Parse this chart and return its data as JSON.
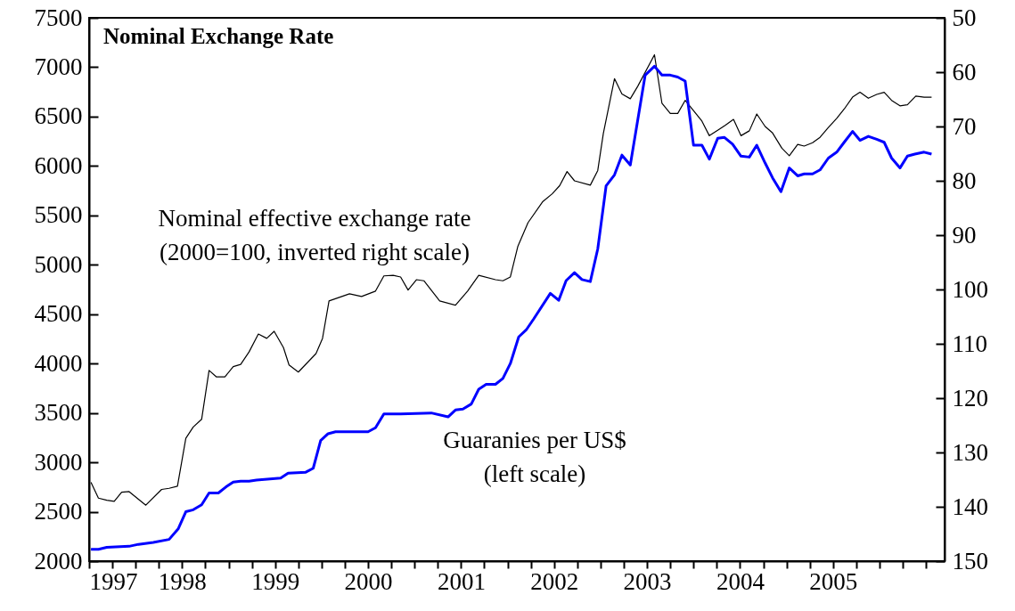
{
  "chart_data": {
    "type": "line",
    "title": "Nominal Exchange Rate",
    "xlim": [
      1997,
      2006.2
    ],
    "xticks": [
      1997,
      {
        "value": 1997.25,
        "label": null
      },
      {
        "value": 1997.5,
        "label": null
      },
      {
        "value": 1997.75,
        "label": null
      },
      1998,
      {
        "value": 1998.25,
        "label": null
      },
      {
        "value": 1998.5,
        "label": null
      },
      {
        "value": 1998.75,
        "label": null
      },
      1999,
      {
        "value": 1999.25,
        "label": null
      },
      {
        "value": 1999.5,
        "label": null
      },
      {
        "value": 1999.75,
        "label": null
      },
      2000,
      {
        "value": 2000.25,
        "label": null
      },
      {
        "value": 2000.5,
        "label": null
      },
      {
        "value": 2000.75,
        "label": null
      },
      2001,
      {
        "value": 2001.25,
        "label": null
      },
      {
        "value": 2001.5,
        "label": null
      },
      {
        "value": 2001.75,
        "label": null
      },
      2002,
      {
        "value": 2002.25,
        "label": null
      },
      {
        "value": 2002.5,
        "label": null
      },
      {
        "value": 2002.75,
        "label": null
      },
      2003,
      {
        "value": 2003.25,
        "label": null
      },
      {
        "value": 2003.5,
        "label": null
      },
      {
        "value": 2003.75,
        "label": null
      },
      2004,
      {
        "value": 2004.25,
        "label": null
      },
      {
        "value": 2004.5,
        "label": null
      },
      {
        "value": 2004.75,
        "label": null
      },
      2005,
      {
        "value": 2005.25,
        "label": null
      },
      {
        "value": 2005.5,
        "label": null
      },
      {
        "value": 2005.75,
        "label": null
      },
      {
        "value": 2006,
        "label": null
      }
    ],
    "ylim": [
      2000,
      7500
    ],
    "yticks": [
      2000,
      2500,
      3000,
      3500,
      4000,
      4500,
      5000,
      5500,
      6000,
      6500,
      7000,
      7500
    ],
    "y2lim": [
      150,
      50
    ],
    "y2ticks": [
      50,
      60,
      70,
      80,
      90,
      100,
      110,
      120,
      130,
      140,
      150
    ],
    "series": [
      {
        "name": "Nominal effective exchange rate\n(2000=100, inverted right scale)",
        "color": "#000000",
        "axis": "y2",
        "x": [
          1997.02,
          1997.1,
          1997.19,
          1997.27,
          1997.35,
          1997.43,
          1997.61,
          1997.78,
          1997.86,
          1997.95,
          1998.04,
          1998.12,
          1998.21,
          1998.29,
          1998.37,
          1998.46,
          1998.55,
          1998.63,
          1998.72,
          1998.82,
          1998.91,
          1998.99,
          1999.09,
          1999.15,
          1999.25,
          1999.44,
          1999.51,
          1999.58,
          1999.8,
          1999.93,
          2000.08,
          2000.17,
          2000.27,
          2000.35,
          2000.43,
          2000.52,
          2000.6,
          2000.77,
          2000.94,
          2001.07,
          2001.19,
          2001.37,
          2001.45,
          2001.53,
          2001.61,
          2001.72,
          2001.88,
          2001.98,
          2002.06,
          2002.14,
          2002.22,
          2002.39,
          2002.47,
          2002.53,
          2002.65,
          2002.73,
          2002.82,
          2002.9,
          2003.08,
          2003.16,
          2003.25,
          2003.33,
          2003.41,
          2003.59,
          2003.67,
          2003.76,
          2003.84,
          2003.93,
          2004.01,
          2004.1,
          2004.18,
          2004.27,
          2004.35,
          2004.45,
          2004.53,
          2004.62,
          2004.69,
          2004.78,
          2004.86,
          2004.95,
          2005.04,
          2005.12,
          2005.21,
          2005.29,
          2005.38,
          2005.47,
          2005.55,
          2005.63,
          2005.72,
          2005.8,
          2005.89,
          2005.98,
          2006.06
        ],
        "values": [
          135.5,
          138.4,
          138.8,
          139.0,
          137.3,
          137.2,
          139.7,
          136.8,
          136.6,
          136.2,
          127.4,
          125.3,
          123.9,
          114.9,
          116.1,
          116.1,
          114.2,
          113.8,
          111.5,
          108.2,
          109.0,
          107.7,
          110.7,
          113.9,
          115.2,
          111.8,
          109.0,
          102.1,
          100.8,
          101.3,
          100.3,
          97.5,
          97.4,
          97.7,
          100.1,
          98.2,
          98.4,
          102.1,
          102.9,
          100.3,
          97.4,
          98.2,
          98.4,
          97.7,
          92.1,
          87.7,
          83.8,
          82.4,
          80.9,
          78.3,
          80.0,
          80.8,
          78.1,
          71.3,
          61.2,
          64.0,
          64.9,
          62.6,
          56.8,
          65.7,
          67.6,
          67.6,
          65.2,
          69.0,
          71.7,
          70.7,
          69.8,
          68.7,
          71.7,
          70.8,
          67.7,
          70.0,
          71.2,
          74.0,
          75.4,
          73.3,
          73.6,
          73.0,
          72.0,
          70.2,
          68.5,
          66.8,
          64.6,
          63.7,
          64.8,
          64.1,
          63.7,
          65.2,
          66.2,
          66.0,
          64.4,
          64.6,
          64.6
        ]
      },
      {
        "name": "Guaranies per US$\n(left scale)",
        "color": "#0000ff",
        "x": [
          1997.02,
          1997.1,
          1997.19,
          1997.43,
          1997.53,
          1997.69,
          1997.86,
          1997.96,
          1998.04,
          1998.12,
          1998.21,
          1998.29,
          1998.39,
          1998.47,
          1998.55,
          1998.63,
          1998.72,
          1998.8,
          1999.06,
          1999.14,
          1999.33,
          1999.41,
          1999.49,
          1999.57,
          1999.65,
          2000.0,
          2000.08,
          2000.17,
          2000.35,
          2000.68,
          2000.86,
          2000.94,
          2001.02,
          2001.11,
          2001.19,
          2001.27,
          2001.37,
          2001.45,
          2001.53,
          2001.62,
          2001.7,
          2001.78,
          2001.96,
          2002.05,
          2002.13,
          2002.22,
          2002.3,
          2002.39,
          2002.47,
          2002.56,
          2002.65,
          2002.73,
          2002.82,
          2002.98,
          2003.08,
          2003.16,
          2003.25,
          2003.33,
          2003.41,
          2003.5,
          2003.59,
          2003.67,
          2003.76,
          2003.83,
          2003.92,
          2004.01,
          2004.1,
          2004.18,
          2004.27,
          2004.35,
          2004.44,
          2004.53,
          2004.62,
          2004.69,
          2004.78,
          2004.86,
          2004.95,
          2005.04,
          2005.12,
          2005.21,
          2005.29,
          2005.38,
          2005.47,
          2005.55,
          2005.63,
          2005.72,
          2005.8,
          2005.88,
          2005.98,
          2006.06
        ],
        "values": [
          2120,
          2120,
          2140,
          2150,
          2170,
          2190,
          2220,
          2330,
          2500,
          2520,
          2570,
          2690,
          2690,
          2750,
          2800,
          2810,
          2810,
          2820,
          2840,
          2890,
          2900,
          2940,
          3220,
          3290,
          3310,
          3310,
          3350,
          3490,
          3490,
          3500,
          3460,
          3530,
          3540,
          3590,
          3740,
          3790,
          3790,
          3850,
          4000,
          4270,
          4340,
          4450,
          4710,
          4640,
          4840,
          4920,
          4850,
          4830,
          5160,
          5800,
          5910,
          6110,
          6010,
          6920,
          7010,
          6920,
          6920,
          6900,
          6860,
          6210,
          6210,
          6070,
          6280,
          6290,
          6220,
          6100,
          6090,
          6210,
          6030,
          5880,
          5740,
          5980,
          5900,
          5920,
          5920,
          5960,
          6080,
          6140,
          6240,
          6350,
          6260,
          6300,
          6270,
          6240,
          6080,
          5980,
          6100,
          6120,
          6140,
          6120
        ]
      }
    ]
  }
}
